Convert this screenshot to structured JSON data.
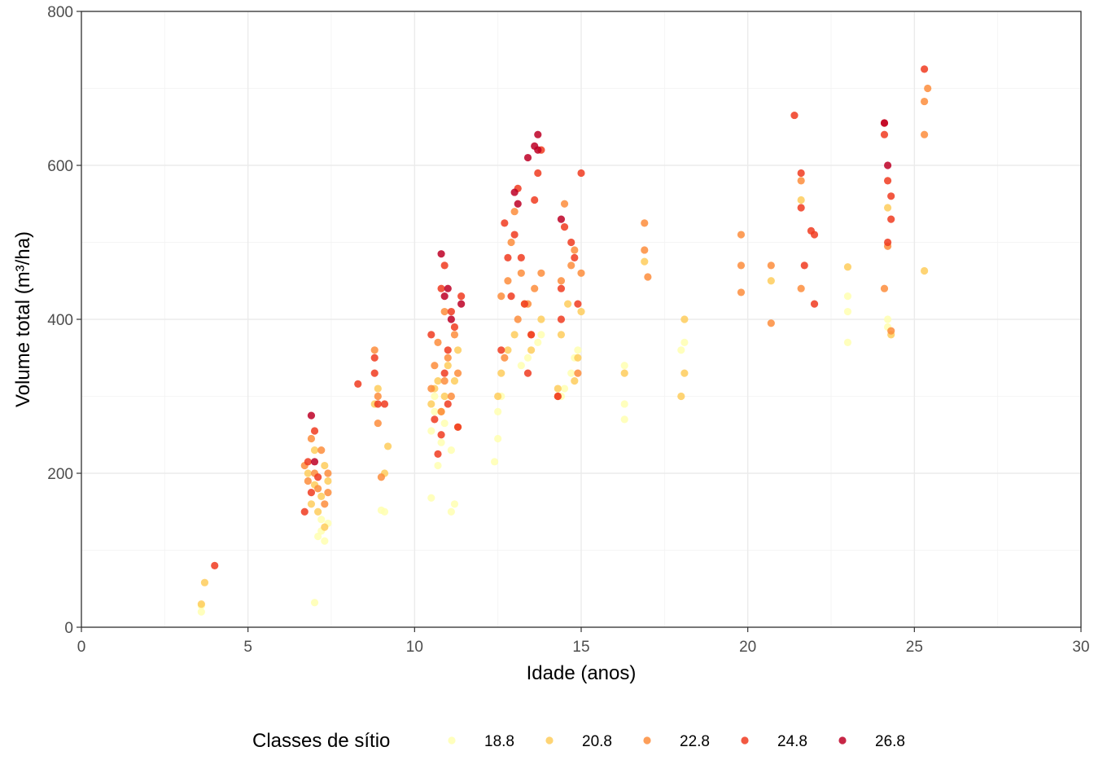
{
  "chart_data": {
    "type": "scatter",
    "title": "",
    "xlabel": "Idade (anos)",
    "ylabel": "Volume total (m³/ha)",
    "xlim": [
      0,
      30
    ],
    "ylim": [
      0,
      800
    ],
    "x_ticks": [
      0,
      5,
      10,
      15,
      20,
      25,
      30
    ],
    "x_tick_labels": [
      "0",
      "5",
      "10",
      "15",
      "20",
      "25",
      "30"
    ],
    "y_ticks": [
      0,
      200,
      400,
      600,
      800
    ],
    "y_tick_labels": [
      "0",
      "200",
      "400",
      "600",
      "800"
    ],
    "grid": true,
    "legend": {
      "title": "Classes de sítio",
      "position": "bottom",
      "entries": [
        "18.8",
        "20.8",
        "22.8",
        "24.8",
        "26.8"
      ]
    },
    "series": [
      {
        "name": "18.8",
        "color": "#ffffb2",
        "x": [
          3.6,
          3.6,
          7.0,
          7.1,
          7.2,
          7.2,
          7.3,
          7.4,
          9.0,
          9.1,
          10.5,
          10.5,
          10.6,
          10.6,
          10.7,
          10.8,
          10.9,
          11.1,
          11.1,
          11.2,
          12.4,
          12.5,
          12.5,
          12.6,
          13.2,
          13.4,
          13.7,
          13.8,
          14.4,
          14.5,
          14.7,
          14.8,
          14.9,
          16.3,
          16.3,
          16.3,
          18.0,
          18.1,
          23.0,
          23.0,
          23.0,
          24.2,
          24.2
        ],
        "y": [
          20,
          28,
          32,
          118,
          125,
          140,
          112,
          135,
          152,
          150,
          168,
          255,
          280,
          300,
          210,
          240,
          265,
          230,
          150,
          160,
          215,
          245,
          280,
          300,
          340,
          350,
          370,
          380,
          300,
          310,
          330,
          350,
          360,
          270,
          290,
          340,
          360,
          370,
          370,
          410,
          430,
          390,
          400
        ]
      },
      {
        "name": "20.8",
        "color": "#fecc5c",
        "x": [
          3.6,
          3.7,
          6.8,
          6.9,
          7.0,
          7.0,
          7.1,
          7.2,
          7.3,
          7.3,
          7.4,
          8.8,
          8.9,
          9.1,
          9.2,
          10.5,
          10.6,
          10.7,
          10.8,
          10.9,
          11.0,
          11.2,
          11.3,
          12.5,
          12.6,
          12.8,
          13.0,
          13.3,
          13.5,
          13.8,
          14.3,
          14.4,
          14.6,
          14.8,
          14.9,
          15.0,
          16.3,
          16.9,
          18.0,
          18.1,
          18.1,
          20.7,
          21.6,
          23.0,
          24.2,
          24.3,
          25.3
        ],
        "y": [
          30,
          58,
          200,
          160,
          185,
          230,
          150,
          170,
          130,
          210,
          190,
          290,
          310,
          200,
          235,
          290,
          310,
          320,
          280,
          300,
          340,
          320,
          360,
          300,
          330,
          360,
          380,
          420,
          360,
          400,
          310,
          380,
          420,
          320,
          350,
          410,
          330,
          475,
          300,
          330,
          400,
          450,
          555,
          468,
          545,
          380,
          463
        ]
      },
      {
        "name": "22.8",
        "color": "#fd8d3c",
        "x": [
          6.7,
          6.8,
          6.9,
          7.0,
          7.1,
          7.2,
          7.3,
          7.4,
          7.4,
          8.8,
          8.9,
          8.9,
          9.0,
          10.5,
          10.6,
          10.7,
          10.8,
          10.9,
          10.9,
          11.0,
          11.1,
          11.2,
          11.3,
          11.3,
          12.6,
          12.7,
          12.8,
          12.9,
          13.0,
          13.1,
          13.2,
          13.4,
          13.5,
          13.6,
          13.8,
          14.3,
          14.4,
          14.5,
          14.7,
          14.8,
          14.9,
          15.0,
          16.9,
          16.9,
          17.0,
          19.8,
          19.8,
          19.8,
          20.7,
          20.7,
          21.6,
          21.6,
          24.1,
          24.2,
          24.3,
          25.3,
          25.3,
          25.4
        ],
        "y": [
          210,
          190,
          245,
          200,
          180,
          230,
          160,
          200,
          175,
          360,
          265,
          300,
          195,
          310,
          340,
          370,
          280,
          320,
          410,
          350,
          300,
          380,
          330,
          260,
          430,
          350,
          450,
          500,
          540,
          400,
          460,
          420,
          380,
          440,
          460,
          300,
          450,
          550,
          470,
          490,
          330,
          460,
          525,
          490,
          455,
          510,
          470,
          435,
          470,
          395,
          580,
          440,
          440,
          495,
          385,
          640,
          683,
          700
        ]
      },
      {
        "name": "24.8",
        "color": "#f03b20",
        "x": [
          4.0,
          6.7,
          6.8,
          6.9,
          7.0,
          7.1,
          8.3,
          8.8,
          8.8,
          8.9,
          9.1,
          10.5,
          10.6,
          10.7,
          10.8,
          10.8,
          10.9,
          10.9,
          11.0,
          11.0,
          11.1,
          11.2,
          11.3,
          11.4,
          12.6,
          12.7,
          12.8,
          12.9,
          13.0,
          13.1,
          13.2,
          13.3,
          13.4,
          13.5,
          13.6,
          13.7,
          13.8,
          14.3,
          14.4,
          14.4,
          14.5,
          14.7,
          14.8,
          14.9,
          15.0,
          21.4,
          21.6,
          21.6,
          21.7,
          21.9,
          22.0,
          22.0,
          24.1,
          24.1,
          24.2,
          24.2,
          24.3,
          24.3,
          25.3
        ],
        "y": [
          80,
          150,
          215,
          175,
          255,
          195,
          316,
          330,
          350,
          290,
          290,
          380,
          270,
          225,
          250,
          440,
          330,
          470,
          360,
          290,
          410,
          390,
          260,
          430,
          360,
          525,
          480,
          430,
          510,
          570,
          480,
          420,
          330,
          380,
          555,
          590,
          620,
          300,
          400,
          440,
          520,
          500,
          480,
          420,
          590,
          665,
          545,
          590,
          470,
          515,
          510,
          420,
          640,
          655,
          500,
          580,
          560,
          530,
          725
        ]
      },
      {
        "name": "26.8",
        "color": "#bd0026",
        "x": [
          6.9,
          7.0,
          10.8,
          10.9,
          11.0,
          11.1,
          11.4,
          13.0,
          13.1,
          13.4,
          13.6,
          13.7,
          13.7,
          14.4,
          24.1,
          24.2
        ],
        "y": [
          275,
          215,
          485,
          430,
          440,
          400,
          420,
          565,
          550,
          610,
          625,
          640,
          620,
          530,
          655,
          600
        ]
      }
    ]
  }
}
